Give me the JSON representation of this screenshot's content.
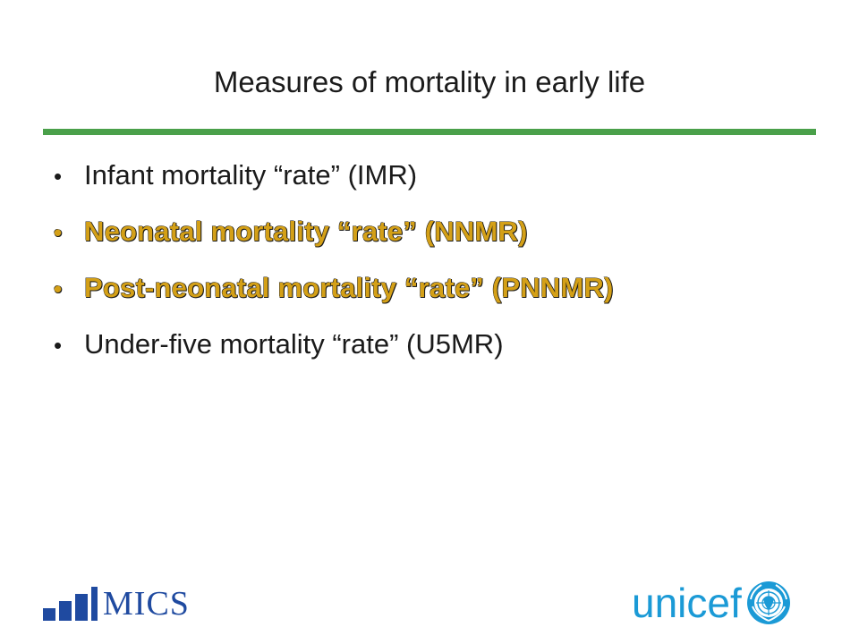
{
  "slide": {
    "title": "Measures of mortality in early life",
    "rule_color": "#4aa04a",
    "bullets": [
      {
        "text": "Infant mortality “rate” (IMR)",
        "emphasized": false
      },
      {
        "text": "Neonatal mortality “rate” (NNMR)",
        "emphasized": true
      },
      {
        "text": "Post-neonatal mortality “rate” (PNNMR)",
        "emphasized": true
      },
      {
        "text": "Under-five mortality “rate” (U5MR)",
        "emphasized": false
      }
    ],
    "bullet_glyph": "•",
    "emphasis_color": "#d4a017"
  },
  "logos": {
    "mics": {
      "text": "MICS",
      "color": "#1f4aa0",
      "icon": "bar-chart-icon"
    },
    "unicef": {
      "text": "unicef",
      "color": "#1b9ad6",
      "icon": "un-emblem-icon"
    }
  }
}
